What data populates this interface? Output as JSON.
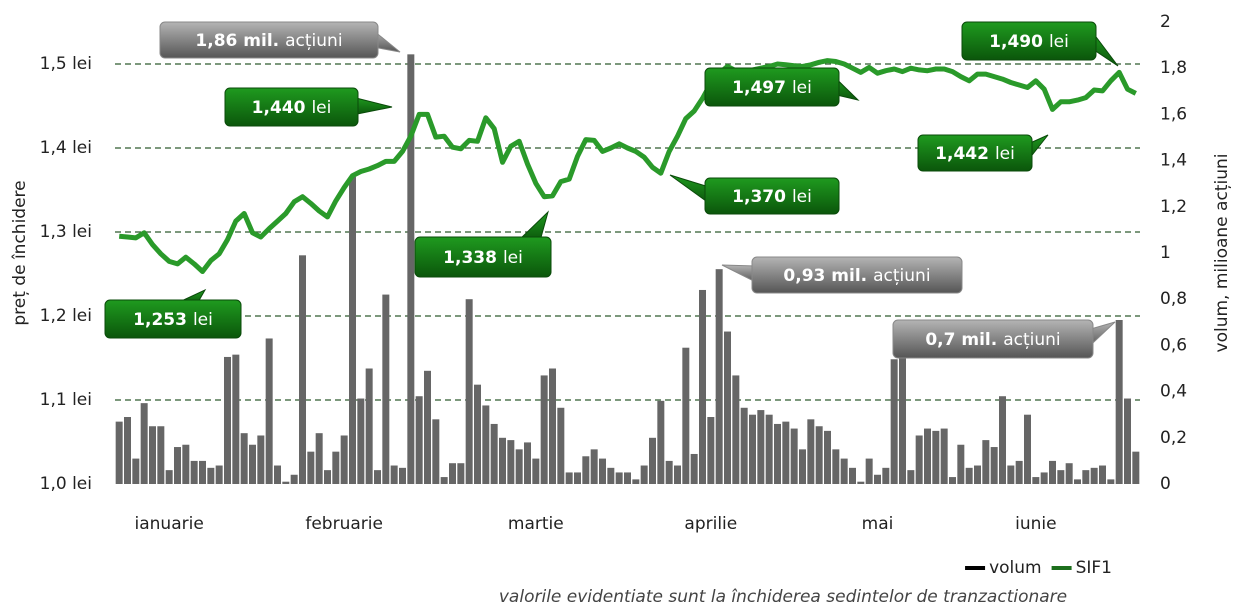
{
  "chart_data": {
    "type": "combo",
    "y_label": "preț de închidere",
    "y2_label": "volum, milioane acțiuni",
    "footnote": "valorile evidentiate sunt la închiderea sedintelor de tranzactionare",
    "legend": "bottom right",
    "grid": true,
    "ylim": [
      1.0,
      1.55
    ],
    "yticks": [
      {
        "value": 1.0,
        "label": "1,0 lei"
      },
      {
        "value": 1.1,
        "label": "1,1 lei"
      },
      {
        "value": 1.2,
        "label": "1,2 lei"
      },
      {
        "value": 1.3,
        "label": "1,3 lei"
      },
      {
        "value": 1.4,
        "label": "1,4 lei"
      },
      {
        "value": 1.5,
        "label": "1,5 lei"
      }
    ],
    "y2lim": [
      0,
      2
    ],
    "y2ticks": [
      0,
      {
        "value": 0.2,
        "label": "0,2"
      },
      {
        "value": 0.4,
        "label": "0,4"
      },
      {
        "value": 0.6,
        "label": "0,6"
      },
      {
        "value": 0.8,
        "label": "0,8"
      },
      1,
      {
        "value": 1.2,
        "label": "1,2"
      },
      {
        "value": 1.4,
        "label": "1,4"
      },
      {
        "value": 1.6,
        "label": "1,6"
      },
      {
        "value": 1.8,
        "label": "1,8"
      },
      2
    ],
    "categories": [
      null,
      null,
      null,
      null,
      null,
      null,
      "ianuarie",
      null,
      null,
      null,
      null,
      null,
      null,
      null,
      null,
      null,
      null,
      null,
      null,
      null,
      null,
      null,
      null,
      null,
      null,
      null,
      null,
      "februarie",
      null,
      null,
      null,
      null,
      null,
      null,
      null,
      null,
      null,
      null,
      null,
      null,
      null,
      null,
      null,
      null,
      null,
      null,
      null,
      null,
      null,
      null,
      "martie",
      null,
      null,
      null,
      null,
      null,
      null,
      null,
      null,
      null,
      null,
      null,
      null,
      null,
      null,
      null,
      null,
      null,
      null,
      null,
      null,
      "aprilie",
      null,
      null,
      null,
      null,
      null,
      null,
      null,
      null,
      null,
      null,
      null,
      null,
      null,
      null,
      null,
      null,
      null,
      null,
      null,
      "mai",
      null,
      null,
      null,
      null,
      null,
      null,
      null,
      null,
      null,
      null,
      null,
      null,
      null,
      null,
      null,
      null,
      null,
      null,
      "iunie",
      null,
      null,
      null,
      null,
      null,
      null,
      null,
      null,
      null,
      null,
      null,
      null
    ],
    "series": [
      {
        "name": "volum",
        "type": "bar",
        "axis": "y2",
        "color": "#666666",
        "legend_color": "#000000",
        "values": [
          0.27,
          0.29,
          0.11,
          0.35,
          0.25,
          0.25,
          0.06,
          0.16,
          0.17,
          0.1,
          0.1,
          0.07,
          0.08,
          0.55,
          0.56,
          0.22,
          0.17,
          0.21,
          0.63,
          0.08,
          0.01,
          0.04,
          0.99,
          0.14,
          0.22,
          0.06,
          0.14,
          0.21,
          1.33,
          0.37,
          0.5,
          0.06,
          0.82,
          0.08,
          0.07,
          1.86,
          0.38,
          0.49,
          0.28,
          0.03,
          0.09,
          0.09,
          0.8,
          0.43,
          0.34,
          0.26,
          0.2,
          0.19,
          0.15,
          0.18,
          0.11,
          0.47,
          0.5,
          0.33,
          0.05,
          0.05,
          0.12,
          0.15,
          0.11,
          0.07,
          0.05,
          0.05,
          0.02,
          0.08,
          0.2,
          0.36,
          0.1,
          0.08,
          0.59,
          0.13,
          0.84,
          0.29,
          0.93,
          0.66,
          0.47,
          0.33,
          0.3,
          0.32,
          0.3,
          0.26,
          0.27,
          0.24,
          0.15,
          0.28,
          0.25,
          0.23,
          0.15,
          0.11,
          0.07,
          0.01,
          0.11,
          0.04,
          0.07,
          0.54,
          0.55,
          0.06,
          0.21,
          0.24,
          0.23,
          0.24,
          0.03,
          0.17,
          0.07,
          0.08,
          0.19,
          0.16,
          0.38,
          0.08,
          0.1,
          0.3,
          0.03,
          0.05,
          0.1,
          0.06,
          0.09,
          0.02,
          0.06,
          0.07,
          0.08,
          0.02,
          0.71,
          0.37,
          0.14
        ]
      },
      {
        "name": "SIF1",
        "type": "line",
        "color": "#2a9a2a",
        "legend_color": "#1d6f1d",
        "values": [
          1.295,
          1.294,
          1.293,
          1.299,
          1.285,
          1.274,
          1.265,
          1.262,
          1.27,
          1.262,
          1.253,
          1.266,
          1.274,
          1.291,
          1.313,
          1.322,
          1.299,
          1.294,
          1.304,
          1.313,
          1.322,
          1.336,
          1.342,
          1.334,
          1.325,
          1.318,
          1.337,
          1.353,
          1.367,
          1.372,
          1.375,
          1.379,
          1.384,
          1.384,
          1.396,
          1.414,
          1.44,
          1.44,
          1.413,
          1.414,
          1.401,
          1.399,
          1.409,
          1.408,
          1.436,
          1.423,
          1.383,
          1.402,
          1.408,
          1.381,
          1.358,
          1.342,
          1.343,
          1.36,
          1.363,
          1.39,
          1.41,
          1.409,
          1.396,
          1.4,
          1.405,
          1.4,
          1.396,
          1.389,
          1.377,
          1.37,
          1.396,
          1.414,
          1.435,
          1.444,
          1.459,
          1.477,
          1.489,
          1.497,
          1.492,
          1.491,
          1.493,
          1.495,
          1.497,
          1.5,
          1.499,
          1.498,
          1.497,
          1.499,
          1.502,
          1.504,
          1.503,
          1.5,
          1.495,
          1.49,
          1.496,
          1.489,
          1.492,
          1.494,
          1.491,
          1.495,
          1.493,
          1.492,
          1.494,
          1.494,
          1.491,
          1.485,
          1.48,
          1.488,
          1.488,
          1.485,
          1.482,
          1.478,
          1.475,
          1.472,
          1.48,
          1.47,
          1.446,
          1.455,
          1.455,
          1.457,
          1.46,
          1.469,
          1.468,
          1.48,
          1.49,
          1.47,
          1.465
        ]
      }
    ],
    "annotations": [
      {
        "bold": "1,86 mil.",
        "text": "acțiuni",
        "color": "gray"
      },
      {
        "bold": "1,440",
        "text": "lei",
        "color": "green"
      },
      {
        "bold": "1,253",
        "text": "lei",
        "color": "green"
      },
      {
        "bold": "1,338",
        "text": "lei",
        "color": "green"
      },
      {
        "bold": "1,370",
        "text": "lei",
        "color": "green"
      },
      {
        "bold": "0,93 mil.",
        "text": "acțiuni",
        "color": "gray"
      },
      {
        "bold": "1,497",
        "text": "lei",
        "color": "green"
      },
      {
        "bold": "1,490",
        "text": "lei",
        "color": "green"
      },
      {
        "bold": "1,442",
        "text": "lei",
        "color": "green"
      },
      {
        "bold": "0,7 mil.",
        "text": "acțiuni",
        "color": "gray"
      }
    ]
  }
}
